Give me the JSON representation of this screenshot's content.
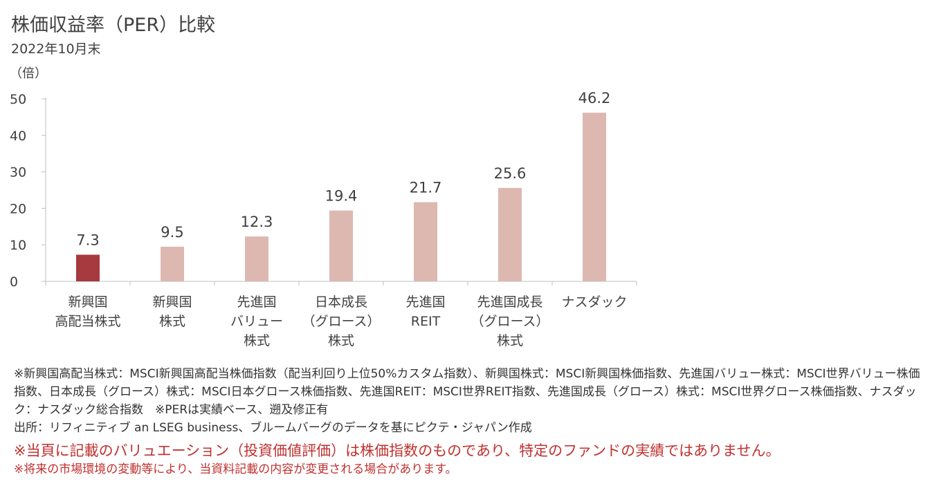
{
  "header": {
    "title": "株価収益率（PER）比較",
    "date": "2022年10月末"
  },
  "colors": {
    "highlight": "#A63A3F",
    "bar": "#DDB8B1",
    "axis": "#BFBFBF",
    "warning": "#C0312F"
  },
  "chart_data": {
    "type": "bar",
    "unit_label": "（倍）",
    "ylim": [
      0,
      50
    ],
    "yticks": [
      0,
      10,
      20,
      30,
      40,
      50
    ],
    "grid": false,
    "categories": [
      [
        "新興国",
        "高配当株式"
      ],
      [
        "新興国",
        "株式"
      ],
      [
        "先進国",
        "バリュー",
        "株式"
      ],
      [
        "日本成長",
        "（グロース）",
        "株式"
      ],
      [
        "先進国",
        "REIT"
      ],
      [
        "先進国成長",
        "（グロース）",
        "株式"
      ],
      [
        "ナスダック"
      ]
    ],
    "values": [
      7.3,
      9.5,
      12.3,
      19.4,
      21.7,
      25.6,
      46.2
    ],
    "value_labels": [
      "7.3",
      "9.5",
      "12.3",
      "19.4",
      "21.7",
      "25.6",
      "46.2"
    ],
    "highlight_index": 0
  },
  "footnotes": {
    "definitions": "※新興国高配当株式：MSCI新興国高配当株価指数（配当利回り上位50%カスタム指数）、新興国株式：MSCI新興国株価指数、先進国バリュー株式：MSCI世界バリュー株価指数、日本成長（グロース）株式：MSCI日本グロース株価指数、先進国REIT：MSCI世界REIT指数、先進国成長（グロース）株式：MSCI世界グロース株価指数、ナスダック：ナスダック総合指数　※PERは実績ベース、遡及修正有",
    "source": "出所：リフィニティブ an LSEG business、ブルームバーグのデータを基にピクテ・ジャパン作成",
    "warning": "※当頁に記載のバリュエーション（投資価値評価）は株価指数のものであり、特定のファンドの実績ではありません。",
    "warning2": "※将来の市場環境の変動等により、当資料記載の内容が変更される場合があります。"
  }
}
